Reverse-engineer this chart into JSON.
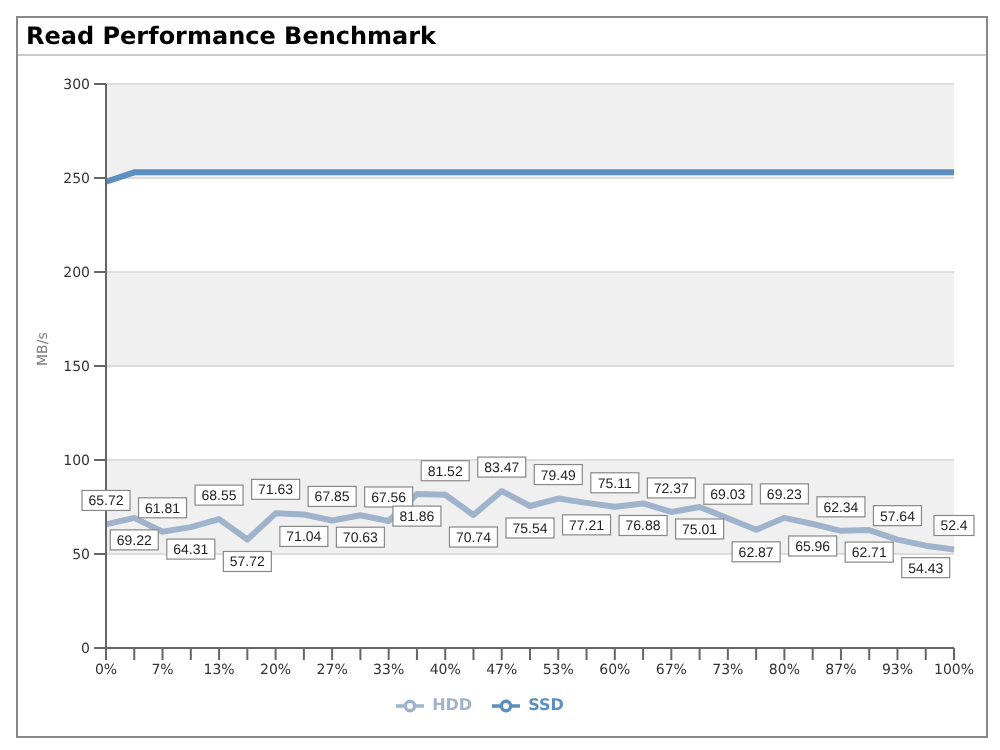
{
  "chart_data": {
    "type": "line",
    "title": "Read Performance Benchmark",
    "ylabel": "MB/s",
    "categories": [
      "0%",
      null,
      "7%",
      null,
      "13%",
      null,
      "20%",
      null,
      "27%",
      null,
      "33%",
      null,
      "40%",
      null,
      "47%",
      null,
      "53%",
      null,
      "60%",
      null,
      "67%",
      null,
      "73%",
      null,
      "80%",
      null,
      "87%",
      null,
      "93%",
      null,
      "100%"
    ],
    "series": [
      {
        "name": "SSD",
        "color": "#5b8fbf",
        "values": [
          248,
          253,
          253,
          253,
          253,
          253,
          253,
          253,
          253,
          253,
          253,
          253,
          253,
          253,
          253,
          253,
          253,
          253,
          253,
          253,
          253,
          253,
          253,
          253,
          253,
          253,
          253,
          253,
          253,
          253,
          253
        ]
      },
      {
        "name": "HDD",
        "color": "#9fb4cc",
        "values": [
          65.72,
          69.22,
          61.81,
          64.31,
          68.55,
          57.72,
          71.63,
          71.04,
          67.85,
          70.63,
          67.56,
          81.86,
          81.52,
          70.74,
          83.47,
          75.54,
          79.49,
          77.21,
          75.11,
          76.88,
          72.37,
          75.01,
          69.03,
          62.87,
          69.23,
          65.96,
          62.34,
          62.71,
          57.64,
          54.43,
          52.4
        ],
        "value_labels": [
          "65.72",
          "69.22",
          "61.81",
          "64.31",
          "68.55",
          "57.72",
          "71.63",
          "71.04",
          "67.85",
          "70.63",
          "67.56",
          "81.86",
          "81.52",
          "70.74",
          "83.47",
          "75.54",
          "79.49",
          "77.21",
          "75.11",
          "76.88",
          "72.37",
          "75.01",
          "69.03",
          "62.87",
          "69.23",
          "65.96",
          "62.34",
          "62.71",
          "57.64",
          "54.43",
          "52.4"
        ]
      }
    ],
    "ylim": [
      0,
      300
    ],
    "yticks": [
      0,
      50,
      100,
      150,
      200,
      250,
      300
    ],
    "grid": "y",
    "legend": "bottom",
    "marker": "none",
    "line_style": "solid"
  }
}
